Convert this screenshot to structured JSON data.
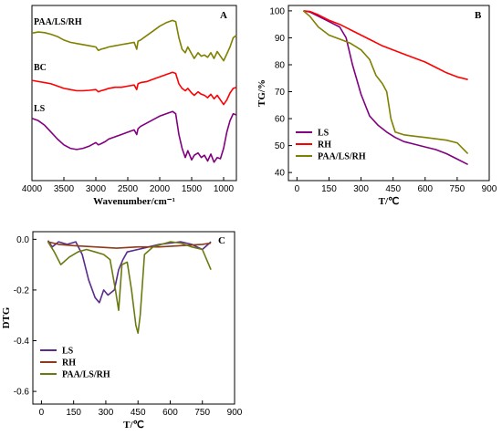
{
  "chart_data": [
    {
      "type": "line",
      "panel": "A",
      "xlabel": "Wavenumber/cm⁻¹",
      "ylabel": "",
      "xlim": [
        4000,
        800
      ],
      "xticks": [
        4000,
        3500,
        3000,
        2500,
        2000,
        1500,
        1000
      ],
      "series": [
        {
          "name": "PAA/LS/RH",
          "color": "#808000",
          "x": [
            4000,
            3900,
            3800,
            3700,
            3600,
            3500,
            3400,
            3300,
            3200,
            3100,
            3000,
            2960,
            2920,
            2850,
            2800,
            2700,
            2600,
            2500,
            2400,
            2360,
            2340,
            2300,
            2200,
            2100,
            2000,
            1900,
            1800,
            1750,
            1700,
            1650,
            1600,
            1560,
            1500,
            1460,
            1400,
            1350,
            1300,
            1250,
            1200,
            1150,
            1100,
            1050,
            1000,
            950,
            900,
            850,
            800
          ],
          "y": [
            6.4,
            6.45,
            6.42,
            6.35,
            6.25,
            6.1,
            6.0,
            5.95,
            5.9,
            5.85,
            5.8,
            5.65,
            5.7,
            5.75,
            5.8,
            5.85,
            5.9,
            5.95,
            6.0,
            5.7,
            6.05,
            6.1,
            6.3,
            6.5,
            6.7,
            6.85,
            6.95,
            6.9,
            6.2,
            5.7,
            5.55,
            5.8,
            5.5,
            5.3,
            5.55,
            5.4,
            5.45,
            5.35,
            5.55,
            5.3,
            5.6,
            5.4,
            5.2,
            5.5,
            5.8,
            6.2,
            6.3
          ]
        },
        {
          "name": "BC",
          "color": "#ff0000",
          "x": [
            4000,
            3900,
            3800,
            3700,
            3600,
            3500,
            3400,
            3300,
            3200,
            3100,
            3000,
            2960,
            2920,
            2850,
            2800,
            2700,
            2600,
            2500,
            2400,
            2360,
            2340,
            2300,
            2200,
            2100,
            2000,
            1900,
            1800,
            1750,
            1700,
            1650,
            1600,
            1560,
            1500,
            1460,
            1400,
            1350,
            1300,
            1250,
            1200,
            1150,
            1100,
            1050,
            1000,
            950,
            900,
            850,
            800
          ],
          "y": [
            4.35,
            4.3,
            4.25,
            4.2,
            4.1,
            4.0,
            3.95,
            3.9,
            3.9,
            3.92,
            3.95,
            3.85,
            3.9,
            3.95,
            4.0,
            4.05,
            4.05,
            4.1,
            4.15,
            3.95,
            4.2,
            4.25,
            4.3,
            4.4,
            4.5,
            4.6,
            4.7,
            4.65,
            4.2,
            4.0,
            3.9,
            4.0,
            3.8,
            3.7,
            3.85,
            3.75,
            3.7,
            3.6,
            3.75,
            3.55,
            3.7,
            3.5,
            3.3,
            3.5,
            3.8,
            4.0,
            4.05
          ]
        },
        {
          "name": "LS",
          "color": "#800080",
          "x": [
            4000,
            3900,
            3800,
            3700,
            3600,
            3500,
            3400,
            3300,
            3200,
            3100,
            3000,
            2960,
            2920,
            2850,
            2800,
            2700,
            2600,
            2500,
            2400,
            2360,
            2340,
            2300,
            2200,
            2100,
            2000,
            1900,
            1800,
            1750,
            1700,
            1650,
            1600,
            1560,
            1500,
            1460,
            1400,
            1350,
            1300,
            1250,
            1200,
            1150,
            1100,
            1050,
            1000,
            950,
            900,
            850,
            800
          ],
          "y": [
            2.7,
            2.6,
            2.4,
            2.1,
            1.8,
            1.55,
            1.4,
            1.35,
            1.4,
            1.5,
            1.65,
            1.55,
            1.6,
            1.7,
            1.8,
            1.9,
            2.0,
            2.1,
            2.2,
            2.0,
            2.25,
            2.35,
            2.5,
            2.65,
            2.8,
            2.9,
            3.0,
            2.9,
            2.0,
            1.4,
            1.0,
            1.3,
            0.9,
            1.1,
            1.2,
            1.0,
            1.1,
            0.85,
            1.15,
            0.8,
            1.0,
            0.95,
            1.4,
            2.1,
            2.6,
            2.9,
            2.85
          ]
        }
      ]
    },
    {
      "type": "line",
      "panel": "B",
      "xlabel": "T/℃",
      "ylabel": "TG/%",
      "xlim": [
        -40,
        900
      ],
      "ylim": [
        37,
        102
      ],
      "xticks": [
        0,
        150,
        300,
        450,
        600,
        750,
        900
      ],
      "yticks": [
        40,
        50,
        60,
        70,
        80,
        90,
        100
      ],
      "legend": "bottom-left",
      "series": [
        {
          "name": "LS",
          "color": "#800080",
          "x": [
            30,
            60,
            100,
            150,
            200,
            230,
            260,
            300,
            340,
            380,
            420,
            460,
            500,
            550,
            600,
            650,
            700,
            750,
            800
          ],
          "y": [
            100,
            99.6,
            98,
            96,
            94,
            90,
            80,
            69,
            61,
            57.5,
            55,
            53,
            51.5,
            50.5,
            49.5,
            48.5,
            47,
            45,
            43
          ]
        },
        {
          "name": "RH",
          "color": "#ff0000",
          "x": [
            30,
            60,
            100,
            150,
            200,
            250,
            300,
            350,
            400,
            450,
            500,
            550,
            600,
            650,
            700,
            750,
            800
          ],
          "y": [
            100,
            99.8,
            98.5,
            96.5,
            95,
            93,
            91,
            89,
            87,
            85.5,
            84,
            82.5,
            81,
            79,
            77,
            75.5,
            74.5
          ]
        },
        {
          "name": "PAA/LS/RH",
          "color": "#808000",
          "x": [
            30,
            60,
            100,
            150,
            200,
            250,
            300,
            340,
            370,
            400,
            420,
            440,
            460,
            500,
            550,
            600,
            650,
            700,
            750,
            800
          ],
          "y": [
            100,
            98,
            94,
            91,
            89.5,
            88,
            85.5,
            82,
            76,
            73,
            70,
            60,
            55,
            54,
            53.5,
            53,
            52.5,
            52,
            51,
            47
          ]
        }
      ]
    },
    {
      "type": "line",
      "panel": "C",
      "xlabel": "T/℃",
      "ylabel": "DTG",
      "xlim": [
        -40,
        900
      ],
      "ylim": [
        -0.65,
        0.03
      ],
      "xticks": [
        0,
        150,
        300,
        450,
        600,
        750,
        900
      ],
      "yticks": [
        0.0,
        -0.2,
        -0.4,
        -0.6
      ],
      "legend": "bottom-left",
      "series": [
        {
          "name": "LS",
          "color": "#5a2c8c",
          "x": [
            30,
            50,
            80,
            120,
            160,
            190,
            220,
            250,
            270,
            290,
            310,
            340,
            360,
            380,
            400,
            450,
            500,
            550,
            600,
            650,
            700,
            750,
            790
          ],
          "y": [
            -0.005,
            -0.03,
            -0.01,
            -0.02,
            -0.01,
            -0.06,
            -0.16,
            -0.23,
            -0.25,
            -0.2,
            -0.22,
            -0.2,
            -0.12,
            -0.08,
            -0.05,
            -0.04,
            -0.03,
            -0.02,
            -0.015,
            -0.01,
            -0.02,
            -0.04,
            -0.01
          ]
        },
        {
          "name": "RH",
          "color": "#8b3a1a",
          "x": [
            30,
            80,
            150,
            250,
            350,
            450,
            550,
            650,
            750,
            790
          ],
          "y": [
            -0.01,
            -0.02,
            -0.025,
            -0.03,
            -0.035,
            -0.03,
            -0.03,
            -0.025,
            -0.02,
            -0.015
          ]
        },
        {
          "name": "PAA/LS/RH",
          "color": "#6b7a10",
          "x": [
            30,
            60,
            90,
            130,
            170,
            210,
            250,
            290,
            320,
            345,
            360,
            375,
            400,
            420,
            440,
            450,
            460,
            480,
            520,
            560,
            600,
            650,
            700,
            750,
            790
          ],
          "y": [
            -0.01,
            -0.05,
            -0.1,
            -0.07,
            -0.05,
            -0.04,
            -0.05,
            -0.06,
            -0.08,
            -0.2,
            -0.28,
            -0.1,
            -0.09,
            -0.2,
            -0.34,
            -0.37,
            -0.3,
            -0.06,
            -0.03,
            -0.02,
            -0.01,
            -0.015,
            -0.03,
            -0.04,
            -0.12
          ]
        }
      ]
    }
  ]
}
